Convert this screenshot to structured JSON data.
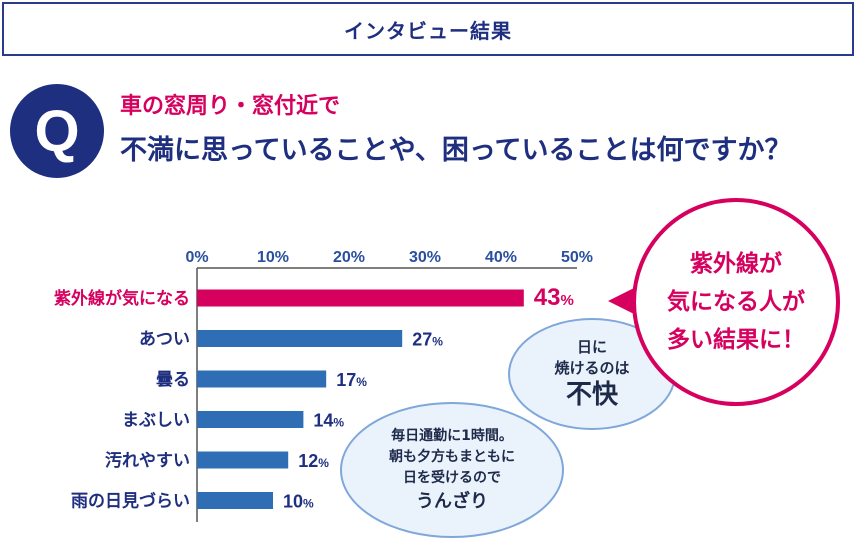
{
  "header": {
    "title": "インタビュー結果"
  },
  "question": {
    "badge": "Q",
    "line1": "車の窓周り・窓付近で",
    "line2": "不満に思っていることや、困っていることは何ですか？"
  },
  "colors": {
    "navy": "#1f2f80",
    "highlight": "#d6005f",
    "bar": "#2f6db5",
    "bubble_fill": "#eaf3fc",
    "bubble_border": "#7fa7d9"
  },
  "chart_data": {
    "type": "bar",
    "orientation": "horizontal",
    "categories": [
      "紫外線が気になる",
      "あつい",
      "曇る",
      "まぶしい",
      "汚れやすい",
      "雨の日見づらい"
    ],
    "values": [
      43,
      27,
      17,
      14,
      12,
      10
    ],
    "value_suffix": "%",
    "xlim": [
      0,
      50
    ],
    "xticks": [
      0,
      10,
      20,
      30,
      40,
      50
    ],
    "xtick_labels": [
      "0%",
      "10%",
      "20%",
      "30%",
      "40%",
      "50%"
    ],
    "highlight_index": 0,
    "grid": false,
    "xlabel": "",
    "ylabel": ""
  },
  "callout": {
    "lines": [
      "紫外線が",
      "気になる人が",
      "多い結果に！"
    ]
  },
  "bubble1": {
    "line1": "日に",
    "line2": "焼けるのは",
    "big": "不快"
  },
  "bubble2": {
    "line1": "毎日通勤に1時間。",
    "line2": "朝も夕方もまともに",
    "line3": "日を受けるので",
    "big": "うんざり"
  }
}
